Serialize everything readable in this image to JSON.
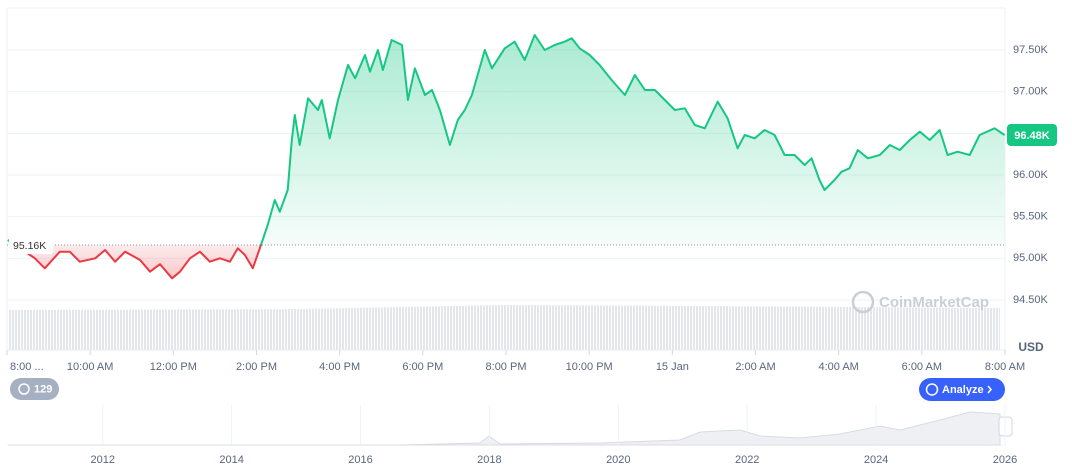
{
  "chart_data": {
    "type": "line",
    "color": "#16c784",
    "down_color": "#ea3943",
    "unit": "USD",
    "watermark": "CoinMarketCap",
    "xlim": [
      0,
      24
    ],
    "xticks": [
      {
        "value": 0,
        "label": "8:00 ..."
      },
      {
        "value": 2,
        "label": "10:00 AM"
      },
      {
        "value": 4,
        "label": "12:00 PM"
      },
      {
        "value": 6,
        "label": "2:00 PM"
      },
      {
        "value": 8,
        "label": "4:00 PM"
      },
      {
        "value": 10,
        "label": "6:00 PM"
      },
      {
        "value": 12,
        "label": "8:00 PM"
      },
      {
        "value": 14,
        "label": "10:00 PM"
      },
      {
        "value": 16,
        "label": "15 Jan"
      },
      {
        "value": 18,
        "label": "2:00 AM"
      },
      {
        "value": 20,
        "label": "4:00 AM"
      },
      {
        "value": 22,
        "label": "6:00 AM"
      },
      {
        "value": 24,
        "label": "8:00 AM"
      }
    ],
    "ylim": [
      94500,
      97980
    ],
    "yticks": [
      {
        "value": 94500,
        "label": "94.50K"
      },
      {
        "value": 95000,
        "label": "95.00K"
      },
      {
        "value": 95500,
        "label": "95.50K"
      },
      {
        "value": 96000,
        "label": "96.00K"
      },
      {
        "value": 96500,
        "label": "96.50K"
      },
      {
        "value": 97000,
        "label": "97.00K"
      },
      {
        "value": 97500,
        "label": "97.50K"
      }
    ],
    "baseline": {
      "value": 95160,
      "label": "95.16K"
    },
    "current_price": {
      "value": 96480,
      "label": "96.48K"
    },
    "x": [
      0.02,
      0.67,
      0.91,
      1.27,
      1.51,
      1.75,
      2.12,
      2.36,
      2.6,
      2.84,
      3.2,
      3.44,
      3.68,
      3.97,
      4.16,
      4.4,
      4.64,
      4.88,
      5.12,
      5.36,
      5.55,
      5.72,
      5.91,
      6.08,
      6.27,
      6.44,
      6.56,
      6.75,
      6.85,
      6.92,
      7.04,
      7.24,
      7.48,
      7.57,
      7.76,
      7.96,
      8.2,
      8.37,
      8.61,
      8.73,
      8.92,
      9.04,
      9.25,
      9.5,
      9.64,
      9.81,
      10.05,
      10.22,
      10.41,
      10.65,
      10.84,
      11.01,
      11.18,
      11.49,
      11.66,
      11.97,
      12.21,
      12.45,
      12.69,
      12.93,
      13.17,
      13.41,
      13.58,
      13.77,
      14.01,
      14.25,
      14.54,
      14.86,
      15.1,
      15.34,
      15.58,
      15.82,
      16.06,
      16.3,
      16.54,
      16.78,
      17.09,
      17.33,
      17.57,
      17.74,
      17.98,
      18.22,
      18.46,
      18.7,
      18.94,
      19.18,
      19.35,
      19.54,
      19.66,
      19.9,
      20.07,
      20.26,
      20.46,
      20.7,
      20.99,
      21.23,
      21.47,
      21.71,
      21.95,
      22.19,
      22.43,
      22.62,
      22.86,
      23.15,
      23.39,
      23.75,
      23.99
    ],
    "values": [
      95220,
      95000,
      94880,
      95080,
      95080,
      94960,
      95000,
      95100,
      94960,
      95080,
      94980,
      94840,
      94930,
      94760,
      94840,
      95000,
      95080,
      94960,
      95000,
      94960,
      95120,
      95040,
      94880,
      95120,
      95400,
      95700,
      95560,
      95820,
      96420,
      96720,
      96360,
      96920,
      96780,
      96900,
      96440,
      96900,
      97320,
      97160,
      97440,
      97240,
      97500,
      97260,
      97620,
      97560,
      96900,
      97280,
      96960,
      97020,
      96780,
      96360,
      96660,
      96780,
      96960,
      97500,
      97280,
      97520,
      97600,
      97380,
      97680,
      97500,
      97560,
      97600,
      97640,
      97520,
      97440,
      97320,
      97140,
      96960,
      97200,
      97020,
      97020,
      96900,
      96780,
      96800,
      96600,
      96560,
      96880,
      96680,
      96320,
      96480,
      96440,
      96540,
      96480,
      96240,
      96240,
      96120,
      96200,
      95940,
      95820,
      95940,
      96040,
      96080,
      96300,
      96200,
      96240,
      96360,
      96300,
      96420,
      96520,
      96420,
      96540,
      96240,
      96280,
      96240,
      96480,
      96560,
      96480
    ],
    "navigator": {
      "xlim": [
        2010.53,
        2026
      ],
      "xticks": [
        2012,
        2014,
        2016,
        2018,
        2020,
        2022,
        2024,
        2026
      ]
    },
    "history_count": "129",
    "analyze_button": "Analyze"
  }
}
